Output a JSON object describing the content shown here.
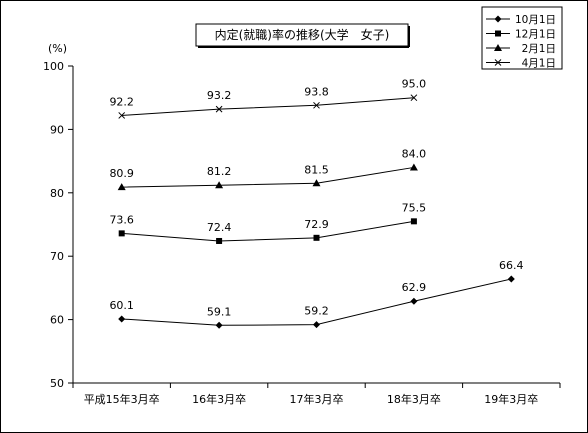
{
  "chart_data": {
    "type": "line",
    "title": "内定(就職)率の推移(大学　女子)",
    "ylabel": "(%)",
    "xlabel": "",
    "ylim": [
      50,
      100
    ],
    "yticks": [
      50,
      60,
      70,
      80,
      90,
      100
    ],
    "categories": [
      "平成15年3月卒",
      "16年3月卒",
      "17年3月卒",
      "18年3月卒",
      "19年3月卒"
    ],
    "legend_position": "top-right",
    "grid": false,
    "series": [
      {
        "name": "10月1日",
        "marker": "diamond",
        "values": [
          60.1,
          59.1,
          59.2,
          62.9,
          66.4
        ]
      },
      {
        "name": "12月1日",
        "marker": "square",
        "values": [
          73.6,
          72.4,
          72.9,
          75.5,
          null
        ]
      },
      {
        "name": "2月1日",
        "marker": "triangle",
        "values": [
          80.9,
          81.2,
          81.5,
          84.0,
          null
        ]
      },
      {
        "name": "4月1日",
        "marker": "x",
        "values": [
          92.2,
          93.2,
          93.8,
          95.0,
          null
        ]
      }
    ]
  }
}
